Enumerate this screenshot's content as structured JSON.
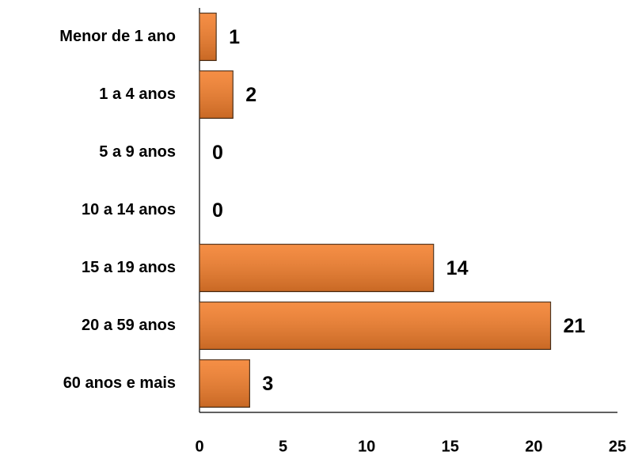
{
  "chart_data": {
    "type": "bar",
    "orientation": "horizontal",
    "categories": [
      "Menor de 1 ano",
      "1 a 4 anos",
      "5 a 9 anos",
      "10 a 14 anos",
      "15 a 19 anos",
      "20 a 59 anos",
      "60 anos e mais"
    ],
    "values": [
      1,
      2,
      0,
      0,
      14,
      21,
      3
    ],
    "color": "#f47f2c",
    "xlim": [
      0,
      25
    ],
    "xticks": [
      0,
      5,
      10,
      15,
      20,
      25
    ],
    "grid": false
  }
}
